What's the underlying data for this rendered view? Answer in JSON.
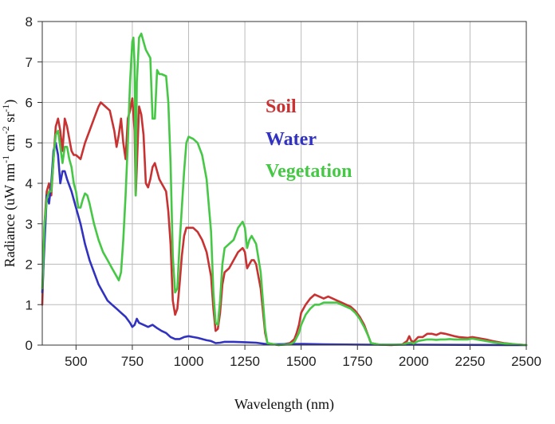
{
  "chart_data": {
    "type": "line",
    "title": "",
    "xlabel": "Wavelength (nm)",
    "ylabel": "Radiance (uW nm⁻¹ cm⁻² sr⁻¹)",
    "xlim": [
      350,
      2500
    ],
    "ylim": [
      0,
      8
    ],
    "grid": true,
    "x_ticks": [
      500,
      750,
      1000,
      1250,
      1500,
      1750,
      2000,
      2250,
      2500
    ],
    "x_tick_labels": [
      "500",
      "750",
      "1000",
      "1250",
      "1500",
      "1750",
      "2000",
      "2250",
      "2500"
    ],
    "y_ticks": [
      0,
      1,
      2,
      3,
      4,
      5,
      6,
      7,
      8
    ],
    "y_tick_labels": [
      "0",
      "1",
      "2",
      "3",
      "4",
      "5",
      "6",
      "7",
      "8"
    ],
    "legend_position": "upper-center-right",
    "series": [
      {
        "name": "Soil",
        "color": "#c83232",
        "points": [
          [
            350,
            1.0
          ],
          [
            360,
            3.0
          ],
          [
            370,
            3.8
          ],
          [
            380,
            4.0
          ],
          [
            390,
            3.7
          ],
          [
            400,
            4.6
          ],
          [
            410,
            5.4
          ],
          [
            420,
            5.6
          ],
          [
            430,
            5.3
          ],
          [
            440,
            4.8
          ],
          [
            450,
            5.6
          ],
          [
            460,
            5.4
          ],
          [
            470,
            5.1
          ],
          [
            480,
            4.8
          ],
          [
            490,
            4.7
          ],
          [
            500,
            4.7
          ],
          [
            520,
            4.6
          ],
          [
            540,
            5.0
          ],
          [
            560,
            5.3
          ],
          [
            580,
            5.6
          ],
          [
            600,
            5.9
          ],
          [
            610,
            6.0
          ],
          [
            630,
            5.9
          ],
          [
            650,
            5.8
          ],
          [
            670,
            5.3
          ],
          [
            680,
            4.9
          ],
          [
            690,
            5.2
          ],
          [
            700,
            5.6
          ],
          [
            710,
            5.0
          ],
          [
            720,
            4.6
          ],
          [
            730,
            5.6
          ],
          [
            740,
            5.8
          ],
          [
            750,
            6.1
          ],
          [
            760,
            5.3
          ],
          [
            765,
            3.7
          ],
          [
            770,
            4.4
          ],
          [
            780,
            5.9
          ],
          [
            790,
            5.7
          ],
          [
            800,
            5.2
          ],
          [
            810,
            4.0
          ],
          [
            820,
            3.9
          ],
          [
            830,
            4.1
          ],
          [
            840,
            4.4
          ],
          [
            850,
            4.5
          ],
          [
            860,
            4.3
          ],
          [
            870,
            4.1
          ],
          [
            880,
            4.0
          ],
          [
            890,
            3.9
          ],
          [
            900,
            3.8
          ],
          [
            910,
            3.3
          ],
          [
            920,
            2.5
          ],
          [
            930,
            1.1
          ],
          [
            940,
            0.75
          ],
          [
            950,
            0.9
          ],
          [
            960,
            1.5
          ],
          [
            970,
            2.2
          ],
          [
            980,
            2.7
          ],
          [
            990,
            2.9
          ],
          [
            1000,
            2.9
          ],
          [
            1020,
            2.9
          ],
          [
            1040,
            2.8
          ],
          [
            1060,
            2.6
          ],
          [
            1080,
            2.3
          ],
          [
            1100,
            1.7
          ],
          [
            1110,
            0.9
          ],
          [
            1120,
            0.35
          ],
          [
            1130,
            0.4
          ],
          [
            1140,
            0.8
          ],
          [
            1150,
            1.5
          ],
          [
            1160,
            1.8
          ],
          [
            1180,
            1.9
          ],
          [
            1200,
            2.1
          ],
          [
            1220,
            2.3
          ],
          [
            1240,
            2.4
          ],
          [
            1250,
            2.3
          ],
          [
            1260,
            1.9
          ],
          [
            1270,
            2.0
          ],
          [
            1280,
            2.1
          ],
          [
            1290,
            2.1
          ],
          [
            1300,
            2.0
          ],
          [
            1320,
            1.4
          ],
          [
            1340,
            0.3
          ],
          [
            1350,
            0.05
          ],
          [
            1400,
            0.0
          ],
          [
            1450,
            0.05
          ],
          [
            1470,
            0.15
          ],
          [
            1480,
            0.3
          ],
          [
            1490,
            0.5
          ],
          [
            1500,
            0.8
          ],
          [
            1520,
            1.0
          ],
          [
            1540,
            1.15
          ],
          [
            1560,
            1.25
          ],
          [
            1580,
            1.2
          ],
          [
            1600,
            1.15
          ],
          [
            1620,
            1.2
          ],
          [
            1640,
            1.15
          ],
          [
            1660,
            1.1
          ],
          [
            1680,
            1.05
          ],
          [
            1700,
            1.0
          ],
          [
            1720,
            0.95
          ],
          [
            1740,
            0.85
          ],
          [
            1760,
            0.7
          ],
          [
            1780,
            0.5
          ],
          [
            1800,
            0.2
          ],
          [
            1810,
            0.05
          ],
          [
            1850,
            0.01
          ],
          [
            1900,
            0.0
          ],
          [
            1950,
            0.02
          ],
          [
            1970,
            0.1
          ],
          [
            1980,
            0.22
          ],
          [
            1990,
            0.1
          ],
          [
            2000,
            0.08
          ],
          [
            2020,
            0.2
          ],
          [
            2040,
            0.2
          ],
          [
            2060,
            0.28
          ],
          [
            2080,
            0.28
          ],
          [
            2100,
            0.25
          ],
          [
            2120,
            0.3
          ],
          [
            2140,
            0.28
          ],
          [
            2160,
            0.25
          ],
          [
            2180,
            0.22
          ],
          [
            2200,
            0.2
          ],
          [
            2240,
            0.18
          ],
          [
            2260,
            0.2
          ],
          [
            2280,
            0.18
          ],
          [
            2320,
            0.14
          ],
          [
            2350,
            0.1
          ],
          [
            2400,
            0.05
          ],
          [
            2450,
            0.02
          ],
          [
            2500,
            0.0
          ]
        ]
      },
      {
        "name": "Water",
        "color": "#3232c0",
        "points": [
          [
            350,
            1.3
          ],
          [
            360,
            2.5
          ],
          [
            370,
            3.7
          ],
          [
            380,
            3.5
          ],
          [
            390,
            4.0
          ],
          [
            400,
            4.8
          ],
          [
            410,
            5.0
          ],
          [
            420,
            4.7
          ],
          [
            430,
            4.0
          ],
          [
            440,
            4.3
          ],
          [
            450,
            4.3
          ],
          [
            460,
            4.1
          ],
          [
            480,
            3.8
          ],
          [
            500,
            3.4
          ],
          [
            520,
            3.0
          ],
          [
            540,
            2.5
          ],
          [
            560,
            2.1
          ],
          [
            580,
            1.8
          ],
          [
            600,
            1.5
          ],
          [
            620,
            1.3
          ],
          [
            640,
            1.1
          ],
          [
            660,
            1.0
          ],
          [
            680,
            0.9
          ],
          [
            700,
            0.8
          ],
          [
            720,
            0.7
          ],
          [
            740,
            0.55
          ],
          [
            750,
            0.45
          ],
          [
            760,
            0.5
          ],
          [
            770,
            0.65
          ],
          [
            780,
            0.55
          ],
          [
            800,
            0.5
          ],
          [
            820,
            0.45
          ],
          [
            840,
            0.5
          ],
          [
            860,
            0.42
          ],
          [
            880,
            0.35
          ],
          [
            900,
            0.3
          ],
          [
            920,
            0.2
          ],
          [
            940,
            0.15
          ],
          [
            960,
            0.15
          ],
          [
            980,
            0.2
          ],
          [
            1000,
            0.22
          ],
          [
            1020,
            0.2
          ],
          [
            1040,
            0.18
          ],
          [
            1060,
            0.15
          ],
          [
            1080,
            0.12
          ],
          [
            1100,
            0.1
          ],
          [
            1120,
            0.05
          ],
          [
            1140,
            0.06
          ],
          [
            1160,
            0.08
          ],
          [
            1200,
            0.08
          ],
          [
            1250,
            0.07
          ],
          [
            1300,
            0.06
          ],
          [
            1340,
            0.03
          ],
          [
            1360,
            0.02
          ],
          [
            1500,
            0.03
          ],
          [
            1600,
            0.02
          ],
          [
            1800,
            0.01
          ],
          [
            2000,
            0.01
          ],
          [
            2500,
            0.0
          ]
        ]
      },
      {
        "name": "Vegetation",
        "color": "#46c846",
        "points": [
          [
            350,
            1.4
          ],
          [
            360,
            3.0
          ],
          [
            370,
            3.6
          ],
          [
            380,
            3.8
          ],
          [
            390,
            3.8
          ],
          [
            400,
            4.6
          ],
          [
            410,
            5.2
          ],
          [
            420,
            5.3
          ],
          [
            430,
            4.9
          ],
          [
            440,
            4.5
          ],
          [
            450,
            4.9
          ],
          [
            460,
            4.9
          ],
          [
            470,
            4.6
          ],
          [
            480,
            4.4
          ],
          [
            490,
            4.0
          ],
          [
            500,
            3.8
          ],
          [
            510,
            3.4
          ],
          [
            520,
            3.4
          ],
          [
            530,
            3.6
          ],
          [
            540,
            3.75
          ],
          [
            550,
            3.7
          ],
          [
            560,
            3.5
          ],
          [
            580,
            3.0
          ],
          [
            600,
            2.6
          ],
          [
            620,
            2.3
          ],
          [
            640,
            2.1
          ],
          [
            660,
            1.9
          ],
          [
            680,
            1.7
          ],
          [
            690,
            1.6
          ],
          [
            700,
            1.8
          ],
          [
            710,
            2.6
          ],
          [
            720,
            3.7
          ],
          [
            730,
            5.0
          ],
          [
            740,
            6.5
          ],
          [
            750,
            7.5
          ],
          [
            755,
            7.6
          ],
          [
            760,
            6.9
          ],
          [
            765,
            3.7
          ],
          [
            770,
            6.5
          ],
          [
            780,
            7.6
          ],
          [
            790,
            7.7
          ],
          [
            800,
            7.5
          ],
          [
            810,
            7.3
          ],
          [
            820,
            7.2
          ],
          [
            830,
            7.1
          ],
          [
            840,
            5.6
          ],
          [
            850,
            5.6
          ],
          [
            860,
            6.8
          ],
          [
            870,
            6.7
          ],
          [
            880,
            6.7
          ],
          [
            900,
            6.65
          ],
          [
            910,
            6.0
          ],
          [
            920,
            4.5
          ],
          [
            930,
            2.2
          ],
          [
            940,
            1.3
          ],
          [
            950,
            1.4
          ],
          [
            960,
            2.5
          ],
          [
            980,
            4.3
          ],
          [
            990,
            5.0
          ],
          [
            1000,
            5.15
          ],
          [
            1020,
            5.1
          ],
          [
            1040,
            5.0
          ],
          [
            1060,
            4.7
          ],
          [
            1080,
            4.1
          ],
          [
            1100,
            2.8
          ],
          [
            1110,
            1.3
          ],
          [
            1120,
            0.55
          ],
          [
            1130,
            0.5
          ],
          [
            1140,
            1.1
          ],
          [
            1150,
            2.0
          ],
          [
            1160,
            2.4
          ],
          [
            1180,
            2.5
          ],
          [
            1200,
            2.6
          ],
          [
            1220,
            2.9
          ],
          [
            1240,
            3.05
          ],
          [
            1250,
            2.9
          ],
          [
            1260,
            2.4
          ],
          [
            1270,
            2.6
          ],
          [
            1280,
            2.7
          ],
          [
            1290,
            2.6
          ],
          [
            1300,
            2.5
          ],
          [
            1320,
            1.8
          ],
          [
            1340,
            0.4
          ],
          [
            1350,
            0.05
          ],
          [
            1400,
            0.0
          ],
          [
            1450,
            0.02
          ],
          [
            1470,
            0.08
          ],
          [
            1490,
            0.3
          ],
          [
            1500,
            0.5
          ],
          [
            1520,
            0.75
          ],
          [
            1540,
            0.9
          ],
          [
            1560,
            1.0
          ],
          [
            1580,
            1.0
          ],
          [
            1600,
            1.05
          ],
          [
            1620,
            1.05
          ],
          [
            1640,
            1.05
          ],
          [
            1660,
            1.05
          ],
          [
            1680,
            1.0
          ],
          [
            1700,
            0.95
          ],
          [
            1720,
            0.9
          ],
          [
            1740,
            0.8
          ],
          [
            1760,
            0.65
          ],
          [
            1780,
            0.45
          ],
          [
            1800,
            0.2
          ],
          [
            1810,
            0.05
          ],
          [
            1850,
            0.01
          ],
          [
            1950,
            0.01
          ],
          [
            1970,
            0.05
          ],
          [
            1990,
            0.06
          ],
          [
            2000,
            0.04
          ],
          [
            2020,
            0.1
          ],
          [
            2040,
            0.12
          ],
          [
            2060,
            0.14
          ],
          [
            2080,
            0.14
          ],
          [
            2100,
            0.13
          ],
          [
            2120,
            0.14
          ],
          [
            2140,
            0.14
          ],
          [
            2160,
            0.15
          ],
          [
            2180,
            0.14
          ],
          [
            2200,
            0.14
          ],
          [
            2240,
            0.14
          ],
          [
            2260,
            0.16
          ],
          [
            2280,
            0.14
          ],
          [
            2320,
            0.1
          ],
          [
            2350,
            0.07
          ],
          [
            2400,
            0.04
          ],
          [
            2450,
            0.02
          ],
          [
            2500,
            0.0
          ]
        ]
      }
    ],
    "legend": [
      {
        "label": "Soil",
        "color": "#c83232"
      },
      {
        "label": "Water",
        "color": "#3232c0"
      },
      {
        "label": "Vegetation",
        "color": "#46c846"
      }
    ]
  }
}
